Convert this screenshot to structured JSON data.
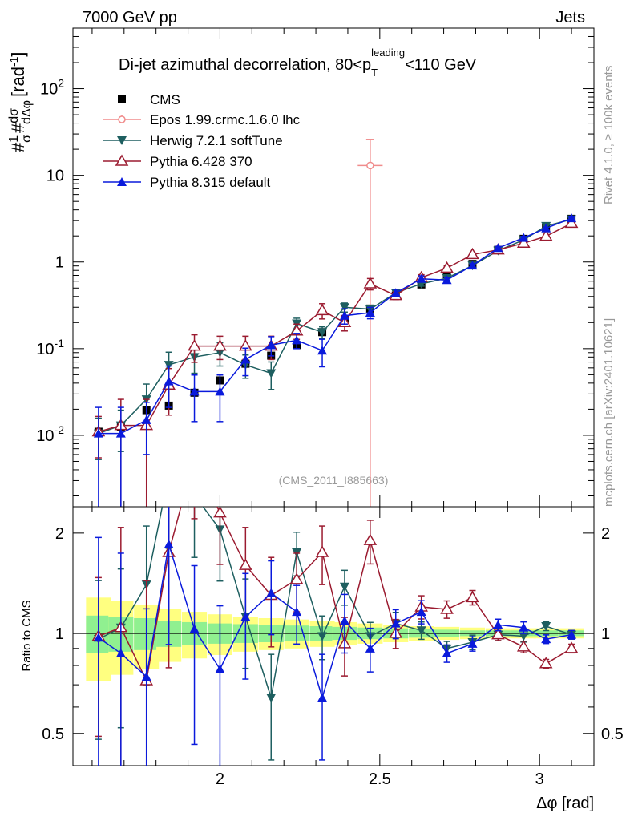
{
  "header": {
    "left": "7000 GeV pp",
    "right": "Jets"
  },
  "side_labels": {
    "rivet": "Rivet 4.1.0, ≥ 100k events",
    "mcplots": "mcplots.cern.ch [arXiv:2401.10621]"
  },
  "chart_data": [
    {
      "type": "scatter",
      "title": "Di-jet azimuthal decorrelation, 80<p_T^leading<110 GeV",
      "title_main": "Di-jet azimuthal decorrelation, 80<p",
      "title_sup": "leading",
      "title_sub": "T",
      "title_tail": "<110 GeV",
      "watermark": "(CMS_2011_I885663)",
      "ylabel": "#1/σ #dσ/dΔφ [rad⁻¹]",
      "ylabel_unit": "[rad",
      "ylabel_unit_sup": "-1",
      "yscale": "log",
      "xlim": [
        1.54,
        3.17
      ],
      "ylim": [
        0.0015,
        500
      ],
      "y_ticks": [
        {
          "value": 0.01,
          "label": "10",
          "sup": "-2"
        },
        {
          "value": 0.1,
          "label": "10",
          "sup": "-1"
        },
        {
          "value": 1,
          "label": "1",
          "sup": ""
        },
        {
          "value": 10,
          "label": "10",
          "sup": ""
        },
        {
          "value": 100,
          "label": "10",
          "sup": "2"
        }
      ],
      "x": [
        1.62,
        1.69,
        1.77,
        1.84,
        1.92,
        2.0,
        2.08,
        2.16,
        2.24,
        2.32,
        2.39,
        2.47,
        2.55,
        2.63,
        2.71,
        2.79,
        2.87,
        2.95,
        3.02,
        3.1
      ],
      "series": [
        {
          "name": "CMS",
          "color": "#000000",
          "marker": "square",
          "values": [
            0.011,
            0.0125,
            0.0195,
            0.022,
            0.031,
            0.043,
            0.067,
            0.083,
            0.11,
            0.155,
            0.22,
            0.29,
            0.41,
            0.55,
            0.72,
            0.95,
            1.38,
            1.85,
            2.45,
            3.15
          ]
        },
        {
          "name": "Epos 1.99.crmc.1.6.0 lhc",
          "color": "#f08c8c",
          "marker": "open-circle",
          "points": [
            {
              "x": 2.47,
              "y": 13.0,
              "ylo": 0.0015,
              "yhi": 26.0,
              "xerr": 0.039
            }
          ]
        },
        {
          "name": "Herwig 7.2.1 softTune",
          "color": "#1e5f60",
          "marker": "down-triangle",
          "values": [
            0.0105,
            0.013,
            0.026,
            0.065,
            0.08,
            0.09,
            0.065,
            0.052,
            0.195,
            0.155,
            0.3,
            0.285,
            0.44,
            0.56,
            0.65,
            0.91,
            1.35,
            1.8,
            2.6,
            3.1
          ]
        },
        {
          "name": "Pythia 6.428 370",
          "color": "#9b1b30",
          "marker": "open-up-triangle",
          "values": [
            0.011,
            0.013,
            0.013,
            0.038,
            0.107,
            0.107,
            0.107,
            0.107,
            0.16,
            0.275,
            0.2,
            0.56,
            0.41,
            0.66,
            0.85,
            1.22,
            1.38,
            1.65,
            1.98,
            2.8
          ]
        },
        {
          "name": "Pythia 8.315 default",
          "color": "#0a1adc",
          "marker": "up-triangle",
          "values": [
            0.0105,
            0.0105,
            0.015,
            0.042,
            0.032,
            0.032,
            0.075,
            0.11,
            0.125,
            0.095,
            0.24,
            0.26,
            0.44,
            0.64,
            0.62,
            0.91,
            1.45,
            1.9,
            2.45,
            3.2
          ]
        }
      ],
      "errors_rel": {
        "Herwig 7.2.1 softTune": [
          0.5,
          0.5,
          0.5,
          0.4,
          0.35,
          0.3,
          0.3,
          0.35,
          0.15,
          0.15,
          0.12,
          0.1,
          0.08,
          0.06,
          0.05,
          0.05,
          0.04,
          0.04,
          0.03,
          0.03
        ],
        "Pythia 6.428 370": [
          0.5,
          1.0,
          1.0,
          0.55,
          0.35,
          0.3,
          0.3,
          0.3,
          0.2,
          0.2,
          0.2,
          0.15,
          0.1,
          0.08,
          0.06,
          0.05,
          0.04,
          0.04,
          0.03,
          0.03
        ],
        "Pythia 8.315 default": [
          1.0,
          1.0,
          0.6,
          0.5,
          0.55,
          0.55,
          0.35,
          0.25,
          0.2,
          0.35,
          0.2,
          0.15,
          0.1,
          0.08,
          0.06,
          0.05,
          0.04,
          0.04,
          0.03,
          0.03
        ]
      }
    },
    {
      "type": "line",
      "ylabel": "Ratio to CMS",
      "xlabel": "Δφ [rad]",
      "yscale": "log",
      "xlim": [
        1.54,
        3.17
      ],
      "ylim": [
        0.4,
        2.4
      ],
      "x_ticks": [
        2,
        2.5,
        3
      ],
      "x_tick_labels": [
        "2",
        "2.5",
        "3"
      ],
      "y_ticks": [
        0.5,
        1,
        2
      ],
      "y_tick_labels": [
        "0.5",
        "1",
        "2"
      ],
      "x": [
        1.62,
        1.69,
        1.77,
        1.84,
        1.92,
        2.0,
        2.08,
        2.16,
        2.24,
        2.32,
        2.39,
        2.47,
        2.55,
        2.63,
        2.71,
        2.79,
        2.87,
        2.95,
        3.02,
        3.1
      ],
      "band_inner": [
        0.13,
        0.12,
        0.11,
        0.09,
        0.08,
        0.07,
        0.065,
        0.06,
        0.055,
        0.05,
        0.045,
        0.04,
        0.035,
        0.03,
        0.025,
        0.02,
        0.02,
        0.02,
        0.02,
        0.02
      ],
      "band_outer": [
        0.28,
        0.25,
        0.22,
        0.18,
        0.16,
        0.14,
        0.12,
        0.11,
        0.1,
        0.09,
        0.08,
        0.07,
        0.06,
        0.05,
        0.045,
        0.04,
        0.035,
        0.035,
        0.035,
        0.035
      ],
      "series": [
        {
          "name": "Herwig 7.2.1 softTune",
          "color": "#1e5f60",
          "marker": "down-triangle",
          "values": [
            0.96,
            1.04,
            1.4,
            3.0,
            2.6,
            2.05,
            1.12,
            0.64,
            1.75,
            0.98,
            1.38,
            0.98,
            1.07,
            1.02,
            0.9,
            0.94,
            0.99,
            0.98,
            1.05,
            0.99
          ]
        },
        {
          "name": "Pythia 6.428 370",
          "color": "#9b1b30",
          "marker": "open-up-triangle",
          "values": [
            0.98,
            1.04,
            0.72,
            1.75,
            3.4,
            2.3,
            1.6,
            1.3,
            1.45,
            1.75,
            0.93,
            1.9,
            1.0,
            1.2,
            1.18,
            1.28,
            0.99,
            0.91,
            0.81,
            0.9
          ]
        },
        {
          "name": "Pythia 8.315 default",
          "color": "#0a1adc",
          "marker": "up-triangle",
          "values": [
            0.97,
            0.87,
            0.74,
            1.85,
            1.03,
            0.78,
            1.12,
            1.32,
            1.16,
            0.64,
            1.09,
            0.9,
            1.07,
            1.16,
            0.87,
            0.93,
            1.06,
            1.04,
            0.96,
            0.99
          ]
        }
      ]
    }
  ]
}
